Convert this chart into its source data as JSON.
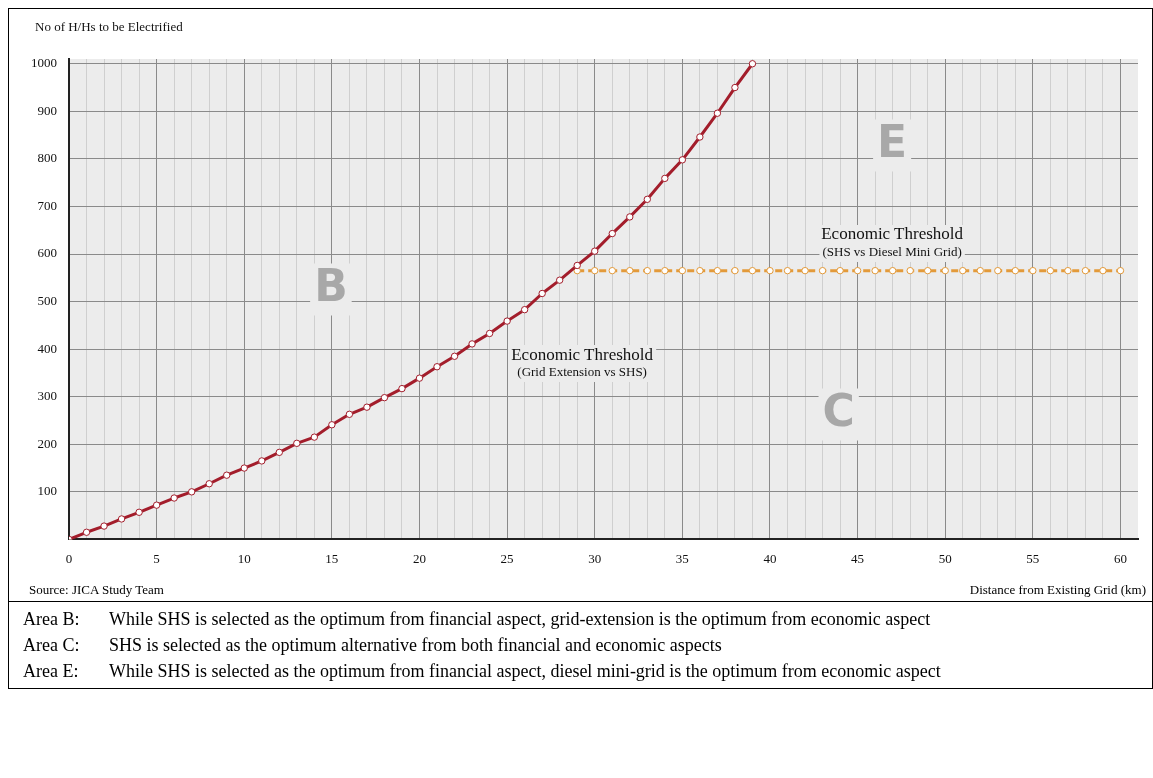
{
  "chart_data": {
    "type": "line",
    "xlabel": "Distance from Existing Grid (km)",
    "ylabel": "No of H/Hs to be Electrified",
    "xlim": [
      0,
      61
    ],
    "ylim": [
      0,
      1010
    ],
    "xticks": [
      0,
      {
        "value": 1,
        "label": null
      },
      {
        "value": 2,
        "label": null
      },
      {
        "value": 3,
        "label": null
      },
      {
        "value": 4,
        "label": null
      },
      5,
      {
        "value": 6,
        "label": null
      },
      {
        "value": 7,
        "label": null
      },
      {
        "value": 8,
        "label": null
      },
      {
        "value": 9,
        "label": null
      },
      10,
      {
        "value": 11,
        "label": null
      },
      {
        "value": 12,
        "label": null
      },
      {
        "value": 13,
        "label": null
      },
      {
        "value": 14,
        "label": null
      },
      15,
      {
        "value": 16,
        "label": null
      },
      {
        "value": 17,
        "label": null
      },
      {
        "value": 18,
        "label": null
      },
      {
        "value": 19,
        "label": null
      },
      20,
      {
        "value": 21,
        "label": null
      },
      {
        "value": 22,
        "label": null
      },
      {
        "value": 23,
        "label": null
      },
      {
        "value": 24,
        "label": null
      },
      25,
      {
        "value": 26,
        "label": null
      },
      {
        "value": 27,
        "label": null
      },
      {
        "value": 28,
        "label": null
      },
      {
        "value": 29,
        "label": null
      },
      30,
      {
        "value": 31,
        "label": null
      },
      {
        "value": 32,
        "label": null
      },
      {
        "value": 33,
        "label": null
      },
      {
        "value": 34,
        "label": null
      },
      35,
      {
        "value": 36,
        "label": null
      },
      {
        "value": 37,
        "label": null
      },
      {
        "value": 38,
        "label": null
      },
      {
        "value": 39,
        "label": null
      },
      40,
      {
        "value": 41,
        "label": null
      },
      {
        "value": 42,
        "label": null
      },
      {
        "value": 43,
        "label": null
      },
      {
        "value": 44,
        "label": null
      },
      45,
      {
        "value": 46,
        "label": null
      },
      {
        "value": 47,
        "label": null
      },
      {
        "value": 48,
        "label": null
      },
      {
        "value": 49,
        "label": null
      },
      50,
      {
        "value": 51,
        "label": null
      },
      {
        "value": 52,
        "label": null
      },
      {
        "value": 53,
        "label": null
      },
      {
        "value": 54,
        "label": null
      },
      55,
      {
        "value": 56,
        "label": null
      },
      {
        "value": 57,
        "label": null
      },
      {
        "value": 58,
        "label": null
      },
      {
        "value": 59,
        "label": null
      },
      60
    ],
    "yticks": [
      100,
      200,
      300,
      400,
      500,
      600,
      700,
      800,
      900,
      1000
    ],
    "grid": true,
    "marker": "circle",
    "line_style": "solid",
    "legend": false,
    "series": [
      {
        "color": "#a31d2b",
        "x": [
          0,
          1,
          2,
          3,
          4,
          5,
          6,
          7,
          8,
          9,
          10,
          11,
          12,
          13,
          14,
          15,
          16,
          17,
          18,
          19,
          20,
          21,
          22,
          23,
          24,
          25,
          26,
          27,
          28,
          29,
          30,
          31,
          32,
          33,
          34,
          35,
          36,
          37,
          38,
          39
        ],
        "values": [
          0,
          15,
          28,
          43,
          57,
          72,
          87,
          100,
          117,
          135,
          150,
          165,
          183,
          202,
          215,
          241,
          263,
          278,
          298,
          317,
          339,
          363,
          385,
          411,
          433,
          459,
          483,
          517,
          545,
          576,
          606,
          643,
          678,
          715,
          759,
          798,
          846,
          896,
          950,
          1000
        ]
      },
      {
        "color": "#e39a3a",
        "line_style": "dashed",
        "x": [
          29,
          30,
          31,
          32,
          33,
          34,
          35,
          36,
          37,
          38,
          39,
          40,
          41,
          42,
          43,
          44,
          45,
          46,
          47,
          48,
          49,
          50,
          51,
          52,
          53,
          54,
          55,
          56,
          57,
          58,
          59,
          60
        ],
        "values": [
          565,
          565,
          565,
          565,
          565,
          565,
          565,
          565,
          565,
          565,
          565,
          565,
          565,
          565,
          565,
          565,
          565,
          565,
          565,
          565,
          565,
          565,
          565,
          565,
          565,
          565,
          565,
          565,
          565,
          565,
          565,
          565
        ]
      }
    ],
    "annotations": [
      "Economic Threshold\n(Grid Extension vs SHS)",
      "Economic Threshold\n(SHS vs Diesel Mini Grid)",
      "B",
      "C",
      "E",
      "Source: JICA Study Team",
      "Area B:\tWhile SHS is selected as the optimum from financial aspect, grid-extension is the optimum from economic aspect",
      "Area C:\tSHS is selected as the optimum alternative from both financial and economic aspects",
      "Area E:\tWhile SHS is selected as the optimum from financial aspect, diesel mini-grid is the optimum from economic aspect"
    ]
  }
}
